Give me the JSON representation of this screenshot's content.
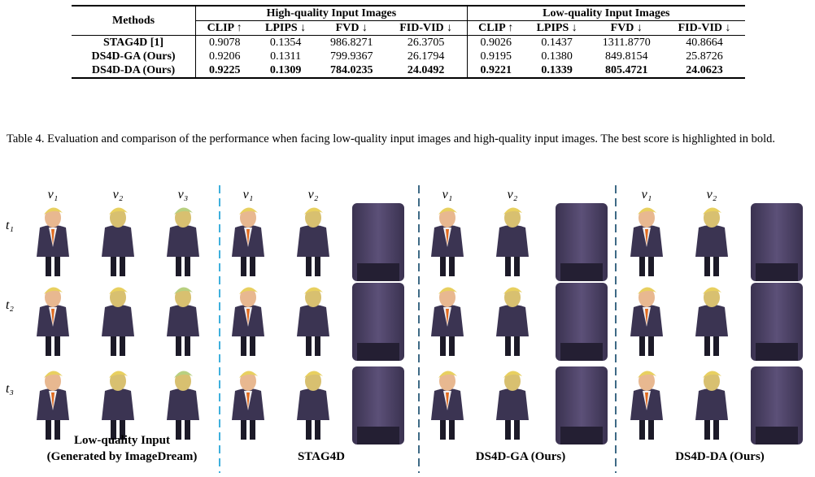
{
  "table": {
    "group_header": [
      "Methods",
      "High-quality Input Images",
      "Low-quality Input Images"
    ],
    "columns": [
      "CLIP ↑",
      "LPIPS ↓",
      "FVD ↓",
      "FID-VID ↓",
      "CLIP ↑",
      "LPIPS ↓",
      "FVD ↓",
      "FID-VID ↓"
    ],
    "rows": [
      [
        "STAG4D [1]",
        "0.9078",
        "0.1354",
        "986.8271",
        "26.3705",
        "0.9026",
        "0.1437",
        "1311.8770",
        "40.8664"
      ],
      [
        "DS4D-GA (Ours)",
        "0.9206",
        "0.1311",
        "799.9367",
        "26.1794",
        "0.9195",
        "0.1380",
        "849.8154",
        "25.8726"
      ],
      [
        "DS4D-DA (Ours)",
        "0.9225",
        "0.1309",
        "784.0235",
        "24.0492",
        "0.9221",
        "0.1339",
        "805.4721",
        "24.0623"
      ]
    ]
  },
  "caption": "Table 4. Evaluation and comparison of the performance when facing low-quality input images and high-quality input images. The best score is highlighted in bold.",
  "figure": {
    "time_labels": [
      "t₁",
      "t₂",
      "t₃"
    ],
    "panels": [
      {
        "views": [
          "v₁",
          "v₂",
          "v₃"
        ],
        "title": [
          "Low-quality Input",
          "(Generated by ImageDream)"
        ]
      },
      {
        "views": [
          "v₁",
          "v₂"
        ],
        "title": [
          "STAG4D"
        ]
      },
      {
        "views": [
          "v₁",
          "v₂"
        ],
        "title": [
          "DS4D-GA (Ours)"
        ]
      },
      {
        "views": [
          "v₁",
          "v₂"
        ],
        "title": [
          "DS4D-DA (Ours)"
        ]
      }
    ]
  }
}
